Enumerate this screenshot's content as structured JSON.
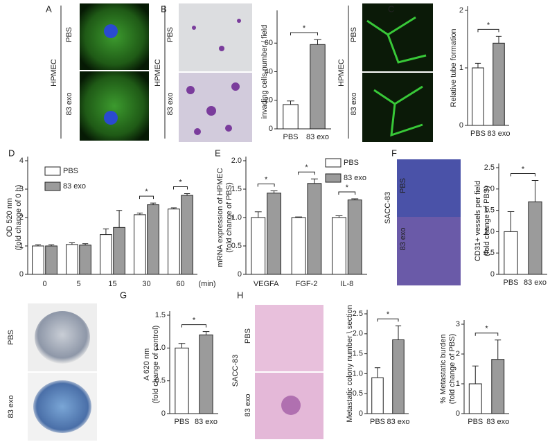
{
  "panel_labels": [
    "A",
    "B",
    "C",
    "D",
    "E",
    "F",
    "G",
    "H"
  ],
  "images": [
    {
      "group": "HPMEC",
      "rows": [
        "PBS",
        "83 exo"
      ]
    },
    {
      "group": "HPMEC",
      "rows": [
        "PBS",
        "83 exo"
      ]
    },
    {
      "group": "HPMEC",
      "rows": [
        "PBS",
        "83 exo"
      ]
    },
    {
      "group": "SACC-83",
      "rows": [
        "PBS",
        "83 exo"
      ]
    },
    {
      "rows": [
        "PBS",
        "83 exo"
      ]
    },
    {
      "group": "SACC-83",
      "rows": [
        "PBS",
        "83 exo"
      ]
    }
  ],
  "chart_data": [
    {
      "type": "bar",
      "ylabel": "invading cells number / field",
      "categories": [
        "PBS",
        "83 exo"
      ],
      "values": [
        17,
        59
      ],
      "errors": [
        2.5,
        3.5
      ],
      "colors": [
        "#ffffff",
        "#9b9b9b"
      ],
      "ylim": [
        0,
        80
      ],
      "yticks": [
        0,
        20,
        40,
        60
      ],
      "significance": "*"
    },
    {
      "type": "bar",
      "ylabel": "Relative tube formation",
      "categories": [
        "PBS",
        "83 exo"
      ],
      "values": [
        1.0,
        1.43
      ],
      "errors": [
        0.08,
        0.12
      ],
      "colors": [
        "#ffffff",
        "#9b9b9b"
      ],
      "ylim": [
        0,
        2
      ],
      "yticks": [
        0,
        1,
        2
      ],
      "significance": "*"
    },
    {
      "type": "grouped-bar",
      "ylabel": [
        "OD 520  nm",
        "(fold change of 0 h)"
      ],
      "xlabel": "(min)",
      "categories": [
        "0",
        "5",
        "15",
        "30",
        "60"
      ],
      "series": [
        {
          "name": "PBS",
          "color": "#ffffff",
          "values": [
            1.0,
            1.05,
            1.4,
            2.1,
            2.3
          ],
          "errors": [
            0.04,
            0.06,
            0.2,
            0.06,
            0.04
          ]
        },
        {
          "name": "83 exo",
          "color": "#9b9b9b",
          "values": [
            1.0,
            1.03,
            1.65,
            2.45,
            2.78
          ],
          "errors": [
            0.04,
            0.05,
            0.6,
            0.06,
            0.06
          ]
        }
      ],
      "ylim": [
        0,
        4
      ],
      "yticks": [
        0,
        1,
        2,
        3,
        4
      ],
      "significance": [
        {
          "category": "30",
          "label": "*"
        },
        {
          "category": "60",
          "label": "*"
        }
      ]
    },
    {
      "type": "grouped-bar",
      "ylabel": [
        "mRNA expression of HPMEC",
        "(fold change of PBS)"
      ],
      "categories": [
        "VEGFA",
        "FGF-2",
        "IL-8"
      ],
      "series": [
        {
          "name": "PBS",
          "color": "#ffffff",
          "values": [
            1.0,
            1.0,
            1.0
          ],
          "errors": [
            0.1,
            0.01,
            0.03
          ]
        },
        {
          "name": "83 exo",
          "color": "#9b9b9b",
          "values": [
            1.43,
            1.6,
            1.31
          ],
          "errors": [
            0.04,
            0.08,
            0.02
          ]
        }
      ],
      "ylim": [
        0,
        2
      ],
      "yticks": [
        0,
        0.5,
        {
          "value": 1,
          "label": "1.0"
        },
        1.5,
        {
          "value": 2,
          "label": "2.0"
        }
      ],
      "significance": [
        {
          "category": "VEGFA",
          "label": "*"
        },
        {
          "category": "FGF-2",
          "label": "*"
        },
        {
          "category": "IL-8",
          "label": "*"
        }
      ]
    },
    {
      "type": "bar",
      "ylabel": [
        "CD31+ vessels per field",
        "(fold change of PBS)"
      ],
      "categories": [
        "PBS",
        "83 exo"
      ],
      "values": [
        1.0,
        1.7
      ],
      "errors": [
        0.47,
        0.5
      ],
      "colors": [
        "#ffffff",
        "#9b9b9b"
      ],
      "ylim": [
        0,
        2.5
      ],
      "yticks": [
        0,
        0.5,
        {
          "value": 1,
          "label": "1.0"
        },
        1.5,
        {
          "value": 2,
          "label": "2.0"
        },
        2.5
      ],
      "significance": "*"
    },
    {
      "type": "bar",
      "ylabel": [
        "A 620 nm",
        "(fold change of control)"
      ],
      "categories": [
        "PBS",
        "83 exo"
      ],
      "values": [
        1.0,
        1.2
      ],
      "errors": [
        0.07,
        0.05
      ],
      "colors": [
        "#ffffff",
        "#9b9b9b"
      ],
      "ylim": [
        0,
        1.5
      ],
      "yticks": [
        0,
        0.5,
        {
          "value": 1,
          "label": "1.0"
        },
        1.5
      ],
      "significance": "*"
    },
    {
      "type": "bar",
      "ylabel": "Metastatic colony number \\ section",
      "categories": [
        "PBS",
        "83 exo"
      ],
      "values": [
        0.9,
        1.85
      ],
      "errors": [
        0.25,
        0.35
      ],
      "colors": [
        "#ffffff",
        "#9b9b9b"
      ],
      "ylim": [
        0,
        2.5
      ],
      "yticks": [
        0,
        0.5,
        {
          "value": 1,
          "label": "1.0"
        },
        1.5,
        {
          "value": 2,
          "label": "2.0"
        },
        2.5
      ],
      "significance": "*"
    },
    {
      "type": "bar",
      "ylabel": [
        "% Metastatic burden",
        "(fold change of PBS)"
      ],
      "categories": [
        "PBS",
        "83 exo"
      ],
      "values": [
        1.0,
        1.82
      ],
      "errors": [
        0.6,
        0.65
      ],
      "colors": [
        "#ffffff",
        "#9b9b9b"
      ],
      "ylim": [
        0,
        3
      ],
      "yticks": [
        0,
        1,
        2,
        3
      ],
      "significance": "*"
    }
  ]
}
